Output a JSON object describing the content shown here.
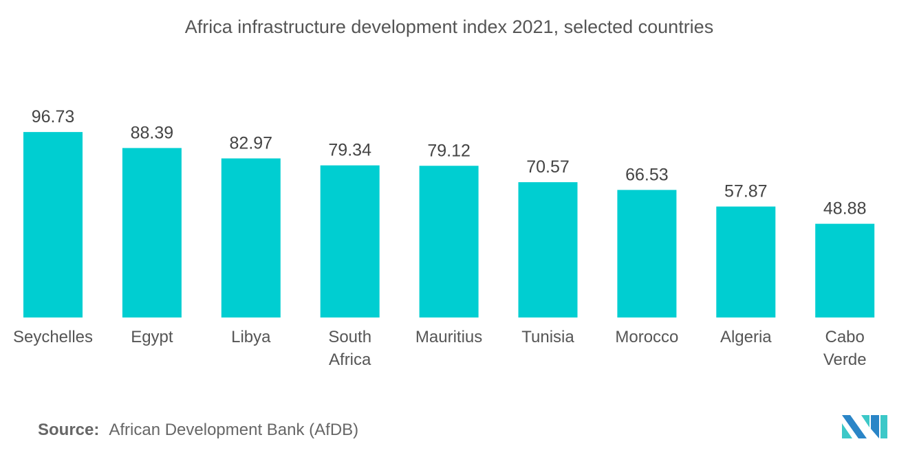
{
  "chart_data": {
    "type": "bar",
    "title": "Africa infrastructure development index 2021, selected countries",
    "categories": [
      "Seychelles",
      "Egypt",
      "Libya",
      "South Africa",
      "Mauritius",
      "Tunisia",
      "Morocco",
      "Algeria",
      "Cabo Verde"
    ],
    "values": [
      96.73,
      88.39,
      82.97,
      79.34,
      79.12,
      70.57,
      66.53,
      57.87,
      48.88
    ],
    "value_labels": [
      "96.73",
      "88.39",
      "82.97",
      "79.34",
      "79.12",
      "70.57",
      "66.53",
      "57.87",
      "48.88"
    ],
    "xlabel": "",
    "ylabel": "",
    "ylim": [
      0,
      100
    ],
    "grid": false,
    "bar_color": "#00ced1"
  },
  "source": {
    "label": "Source:",
    "text": "African Development Bank (AfDB)"
  },
  "logo": {
    "name": "mordor-intelligence-logo",
    "colors": [
      "#2a85c7",
      "#3cc8c8"
    ]
  }
}
